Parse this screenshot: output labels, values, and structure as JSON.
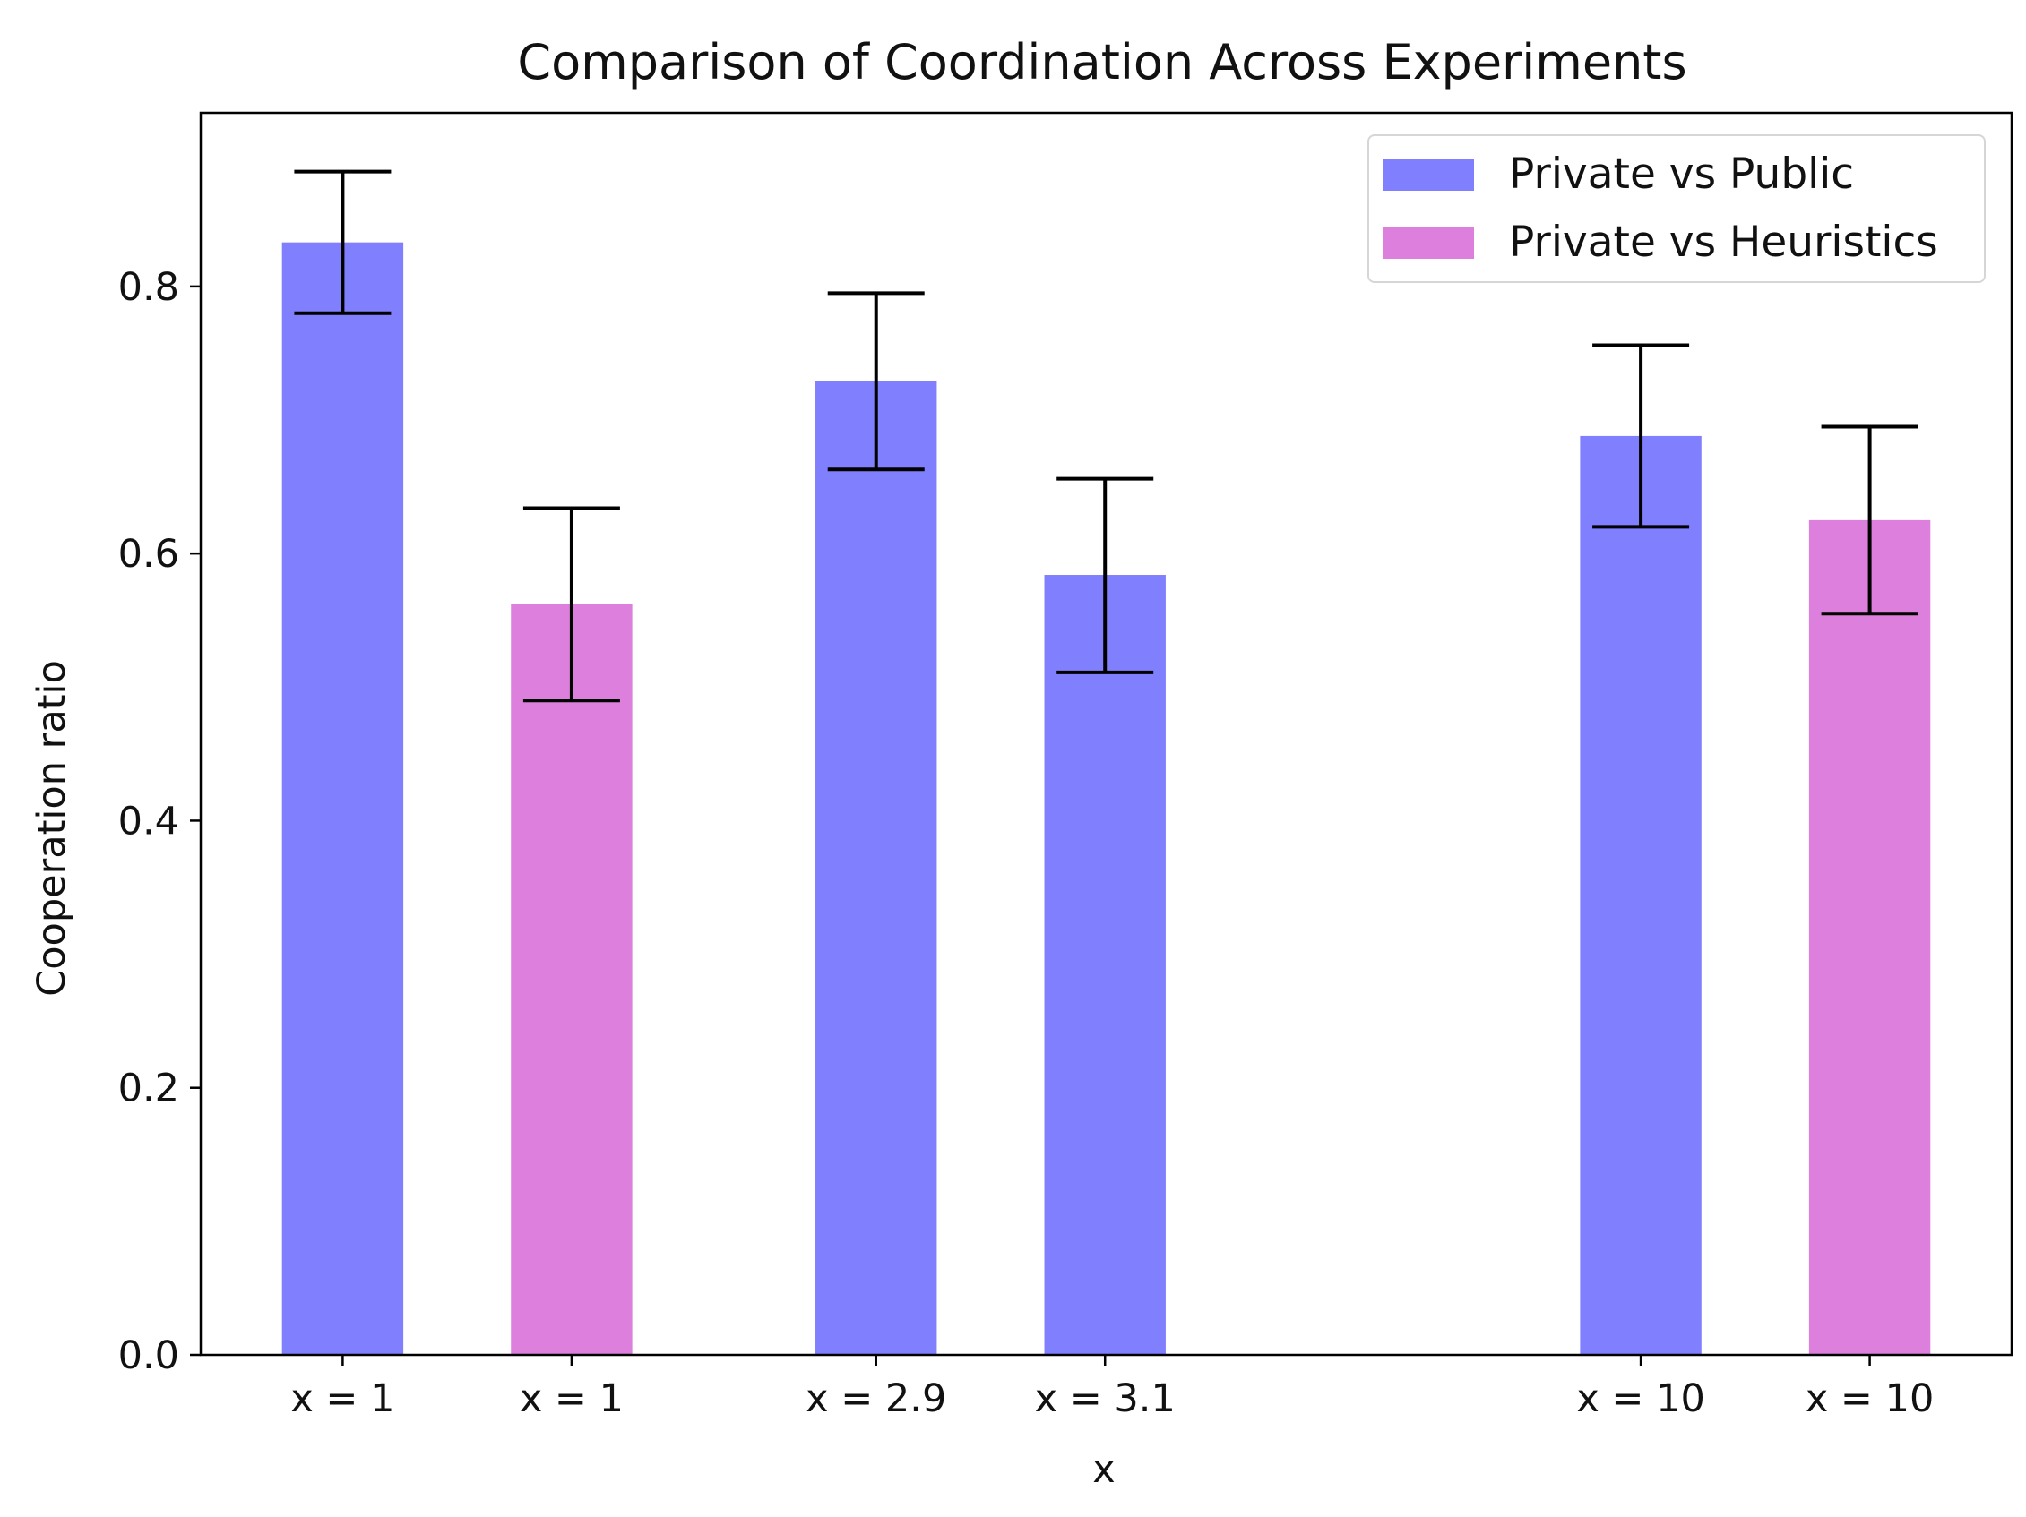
{
  "chart_data": {
    "type": "bar",
    "title": "Comparison of Coordination Across Experiments",
    "xlabel": "x",
    "ylabel": "Cooperation ratio",
    "ylim": [
      0,
      0.93
    ],
    "yticks": [
      0.0,
      0.2,
      0.4,
      0.6,
      0.8
    ],
    "ytick_labels": [
      "0.0",
      "0.2",
      "0.4",
      "0.6",
      "0.8"
    ],
    "grid": false,
    "legend": {
      "placement": "top-right",
      "entries": [
        {
          "label": "Private vs Public",
          "color": "#8080ff"
        },
        {
          "label": "Private vs Heuristics",
          "color": "#dd80dd"
        }
      ]
    },
    "bars": [
      {
        "category": "x = 1",
        "x": 0,
        "value": 0.833,
        "err_low": 0.78,
        "err_high": 0.886,
        "series": "Private vs Public"
      },
      {
        "category": "x = 1",
        "x": 1,
        "value": 0.562,
        "err_low": 0.49,
        "err_high": 0.634,
        "series": "Private vs Heuristics"
      },
      {
        "category": "x = 2.9",
        "x": 2.33,
        "value": 0.729,
        "err_low": 0.663,
        "err_high": 0.795,
        "series": "Private vs Public"
      },
      {
        "category": "x = 3.1",
        "x": 3.33,
        "value": 0.584,
        "err_low": 0.511,
        "err_high": 0.656,
        "series": "Private vs Public"
      },
      {
        "category": "x = 10",
        "x": 5.67,
        "value": 0.688,
        "err_low": 0.62,
        "err_high": 0.756,
        "series": "Private vs Public"
      },
      {
        "category": "x = 10",
        "x": 6.67,
        "value": 0.625,
        "err_low": 0.555,
        "err_high": 0.695,
        "series": "Private vs Heuristics"
      }
    ],
    "xlim": [
      -0.62,
      7.29
    ],
    "bar_width": 0.53
  }
}
